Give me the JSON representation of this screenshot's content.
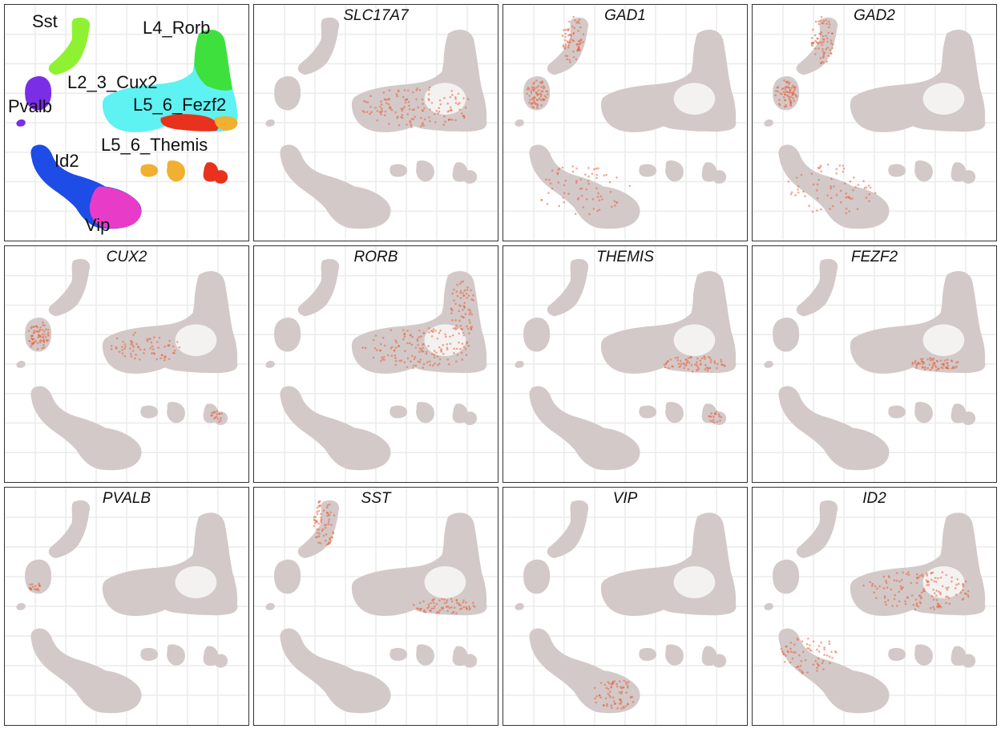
{
  "chart_data": {
    "type": "scatter",
    "description_of_layout": "grid",
    "grid_rows": 3,
    "grid_cols": 4,
    "grid": true,
    "legend": "none",
    "cluster_panel": {
      "labels": [
        {
          "text": "Sst",
          "color": "#8ef232"
        },
        {
          "text": "L4_Rorb",
          "color": "#3ee03e"
        },
        {
          "text": "L2_3_Cux2",
          "color": "#5ef2f2"
        },
        {
          "text": "Pvalb",
          "color": "#7a2ee6"
        },
        {
          "text": "L5_6_Fezf2",
          "color": "#e8321e"
        },
        {
          "text": "L5_6_Themis",
          "color": "#f2b030"
        },
        {
          "text": "Id2",
          "color": "#1e4ce6"
        },
        {
          "text": "Vip",
          "color": "#e83cc8"
        }
      ]
    },
    "gene_panels": [
      {
        "gene": "SLC17A7",
        "highlight": [
          "excitatory"
        ]
      },
      {
        "gene": "GAD1",
        "highlight": [
          "sst",
          "pvalb",
          "id2vip"
        ]
      },
      {
        "gene": "GAD2",
        "highlight": [
          "sst",
          "pvalb",
          "id2vip"
        ]
      },
      {
        "gene": "CUX2",
        "highlight": [
          "pvalb",
          "l23",
          "smallR"
        ]
      },
      {
        "gene": "RORB",
        "highlight": [
          "l4",
          "excitatory"
        ]
      },
      {
        "gene": "THEMIS",
        "highlight": [
          "lowerExc",
          "smallR"
        ]
      },
      {
        "gene": "FEZF2",
        "highlight": [
          "fezf2"
        ]
      },
      {
        "gene": "PVALB",
        "highlight": [
          "pvalbSpot"
        ]
      },
      {
        "gene": "SST",
        "highlight": [
          "sst",
          "lowerExc"
        ]
      },
      {
        "gene": "VIP",
        "highlight": [
          "vip"
        ]
      },
      {
        "gene": "ID2",
        "highlight": [
          "id2",
          "excitatory"
        ]
      }
    ],
    "colors": {
      "base": "#d3c9c8",
      "expression": "#e8603c",
      "grid": "#ebebeb"
    }
  }
}
